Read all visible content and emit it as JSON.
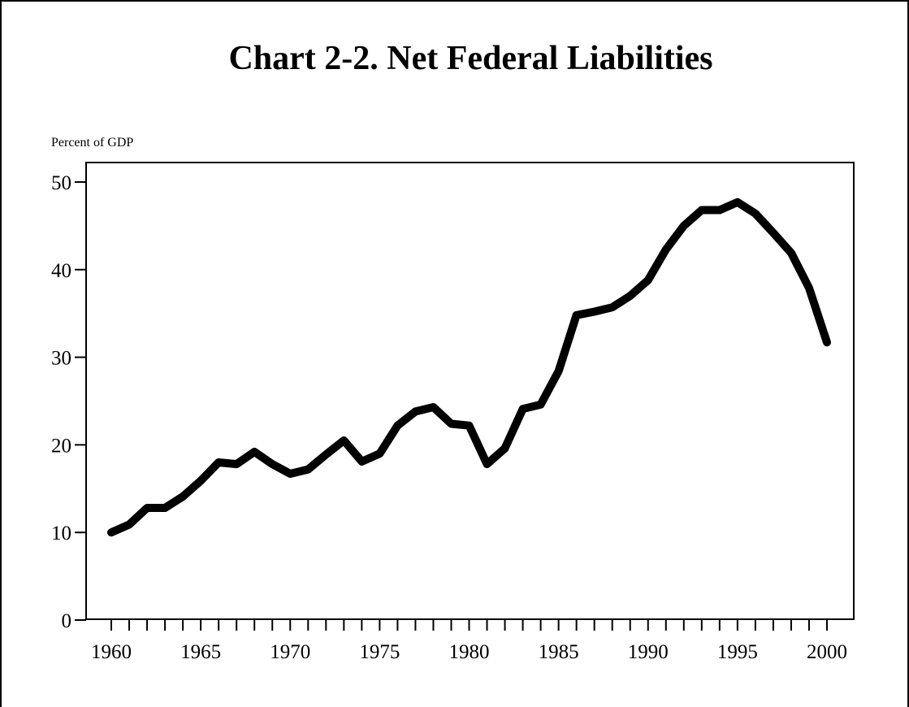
{
  "chart_data": {
    "type": "line",
    "title": "Chart 2-2.  Net Federal Liabilities",
    "ylabel": "Percent of GDP",
    "xlabel": "",
    "xlim": [
      1959,
      2001
    ],
    "ylim": [
      0,
      50
    ],
    "grid": false,
    "yticks": [
      0,
      10,
      20,
      30,
      40,
      50
    ],
    "xtick_labels": [
      1960,
      1965,
      1970,
      1975,
      1980,
      1985,
      1990,
      1995,
      2000
    ],
    "series": [
      {
        "x": [
          1960,
          1961,
          1962,
          1963,
          1964,
          1965,
          1966,
          1967,
          1968,
          1969,
          1970,
          1971,
          1972,
          1973,
          1974,
          1975,
          1976,
          1977,
          1978,
          1979,
          1980,
          1981,
          1982,
          1983,
          1984,
          1985,
          1986,
          1987,
          1988,
          1989,
          1990,
          1991,
          1992,
          1993,
          1994,
          1995,
          1996,
          1997,
          1998,
          1999,
          2000
        ],
        "values": [
          10.0,
          10.9,
          12.8,
          12.8,
          14.1,
          15.9,
          18.0,
          17.8,
          19.2,
          17.8,
          16.7,
          17.2,
          18.9,
          20.5,
          18.1,
          19.0,
          22.2,
          23.8,
          24.3,
          22.4,
          22.2,
          17.8,
          19.6,
          24.1,
          24.6,
          28.4,
          34.8,
          35.2,
          35.7,
          37.0,
          38.8,
          42.3,
          45.0,
          46.8,
          46.8,
          47.7,
          46.4,
          44.2,
          41.9,
          37.9,
          31.7
        ],
        "color": "#000000"
      }
    ]
  }
}
